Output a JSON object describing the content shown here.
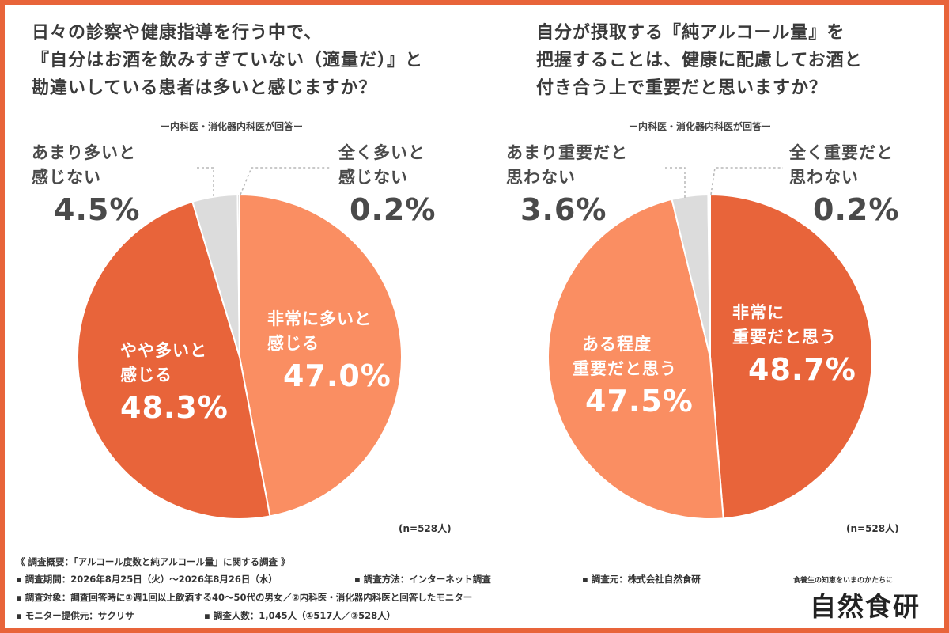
{
  "chart_data": [
    {
      "type": "pie",
      "title_lines": [
        "日々の診察や健康指導を行う中で、",
        "『自分はお酒を飲みすぎていない（適量だ）』と",
        "勘違いしている患者は多いと感じますか？"
      ],
      "subtitle": "ー内科医・消化器内科医が回答ー",
      "note": "(n=528人)",
      "slices": [
        {
          "label_lines": [
            "非常に多いと",
            "感じる"
          ],
          "value": 47.0,
          "display": "47.0%",
          "color": "#fa8e62"
        },
        {
          "label_lines": [
            "やや多いと",
            "感じる"
          ],
          "value": 48.3,
          "display": "48.3%",
          "color": "#e8643a"
        },
        {
          "label_lines": [
            "あまり多いと",
            "感じない"
          ],
          "value": 4.5,
          "display": "4.5%",
          "color": "#dcdcdc"
        },
        {
          "label_lines": [
            "全く多いと",
            "感じない"
          ],
          "value": 0.2,
          "display": "0.2%",
          "color": "#c8c8c8"
        }
      ]
    },
    {
      "type": "pie",
      "title_lines": [
        "自分が摂取する『純アルコール量』を",
        "把握することは、健康に配慮してお酒と",
        "付き合う上で重要だと思いますか？"
      ],
      "subtitle": "ー内科医・消化器内科医が回答ー",
      "note": "(n=528人)",
      "slices": [
        {
          "label_lines": [
            "非常に",
            "重要だと思う"
          ],
          "value": 48.7,
          "display": "48.7%",
          "color": "#e8643a"
        },
        {
          "label_lines": [
            "ある程度",
            "重要だと思う"
          ],
          "value": 47.5,
          "display": "47.5%",
          "color": "#fa8e62"
        },
        {
          "label_lines": [
            "あまり重要だと",
            "思わない"
          ],
          "value": 3.6,
          "display": "3.6%",
          "color": "#dcdcdc"
        },
        {
          "label_lines": [
            "全く重要だと",
            "思わない"
          ],
          "value": 0.2,
          "display": "0.2%",
          "color": "#c8c8c8"
        }
      ]
    }
  ],
  "footer": {
    "overview": "《 調査概要：「アルコール度数と純アルコール量」に関する調査 》",
    "period": "▪ 調査期間：2026年8月25日（火）〜2026年8月26日（水）",
    "method": "▪ 調査方法：インターネット調査",
    "source": "▪ 調査元：株式会社自然食研",
    "target": "▪ 調査対象：調査回答時に①週1回以上飲酒する40〜50代の男女／②内科医・消化器内科医と回答したモニター",
    "provider": "▪ モニター提供元：サクリサ",
    "count": "▪ 調査人数：1,045人（①517人／②528人）"
  },
  "brand": {
    "tagline": "食養生の知恵をいまのかたちに",
    "name": "自然食研"
  }
}
